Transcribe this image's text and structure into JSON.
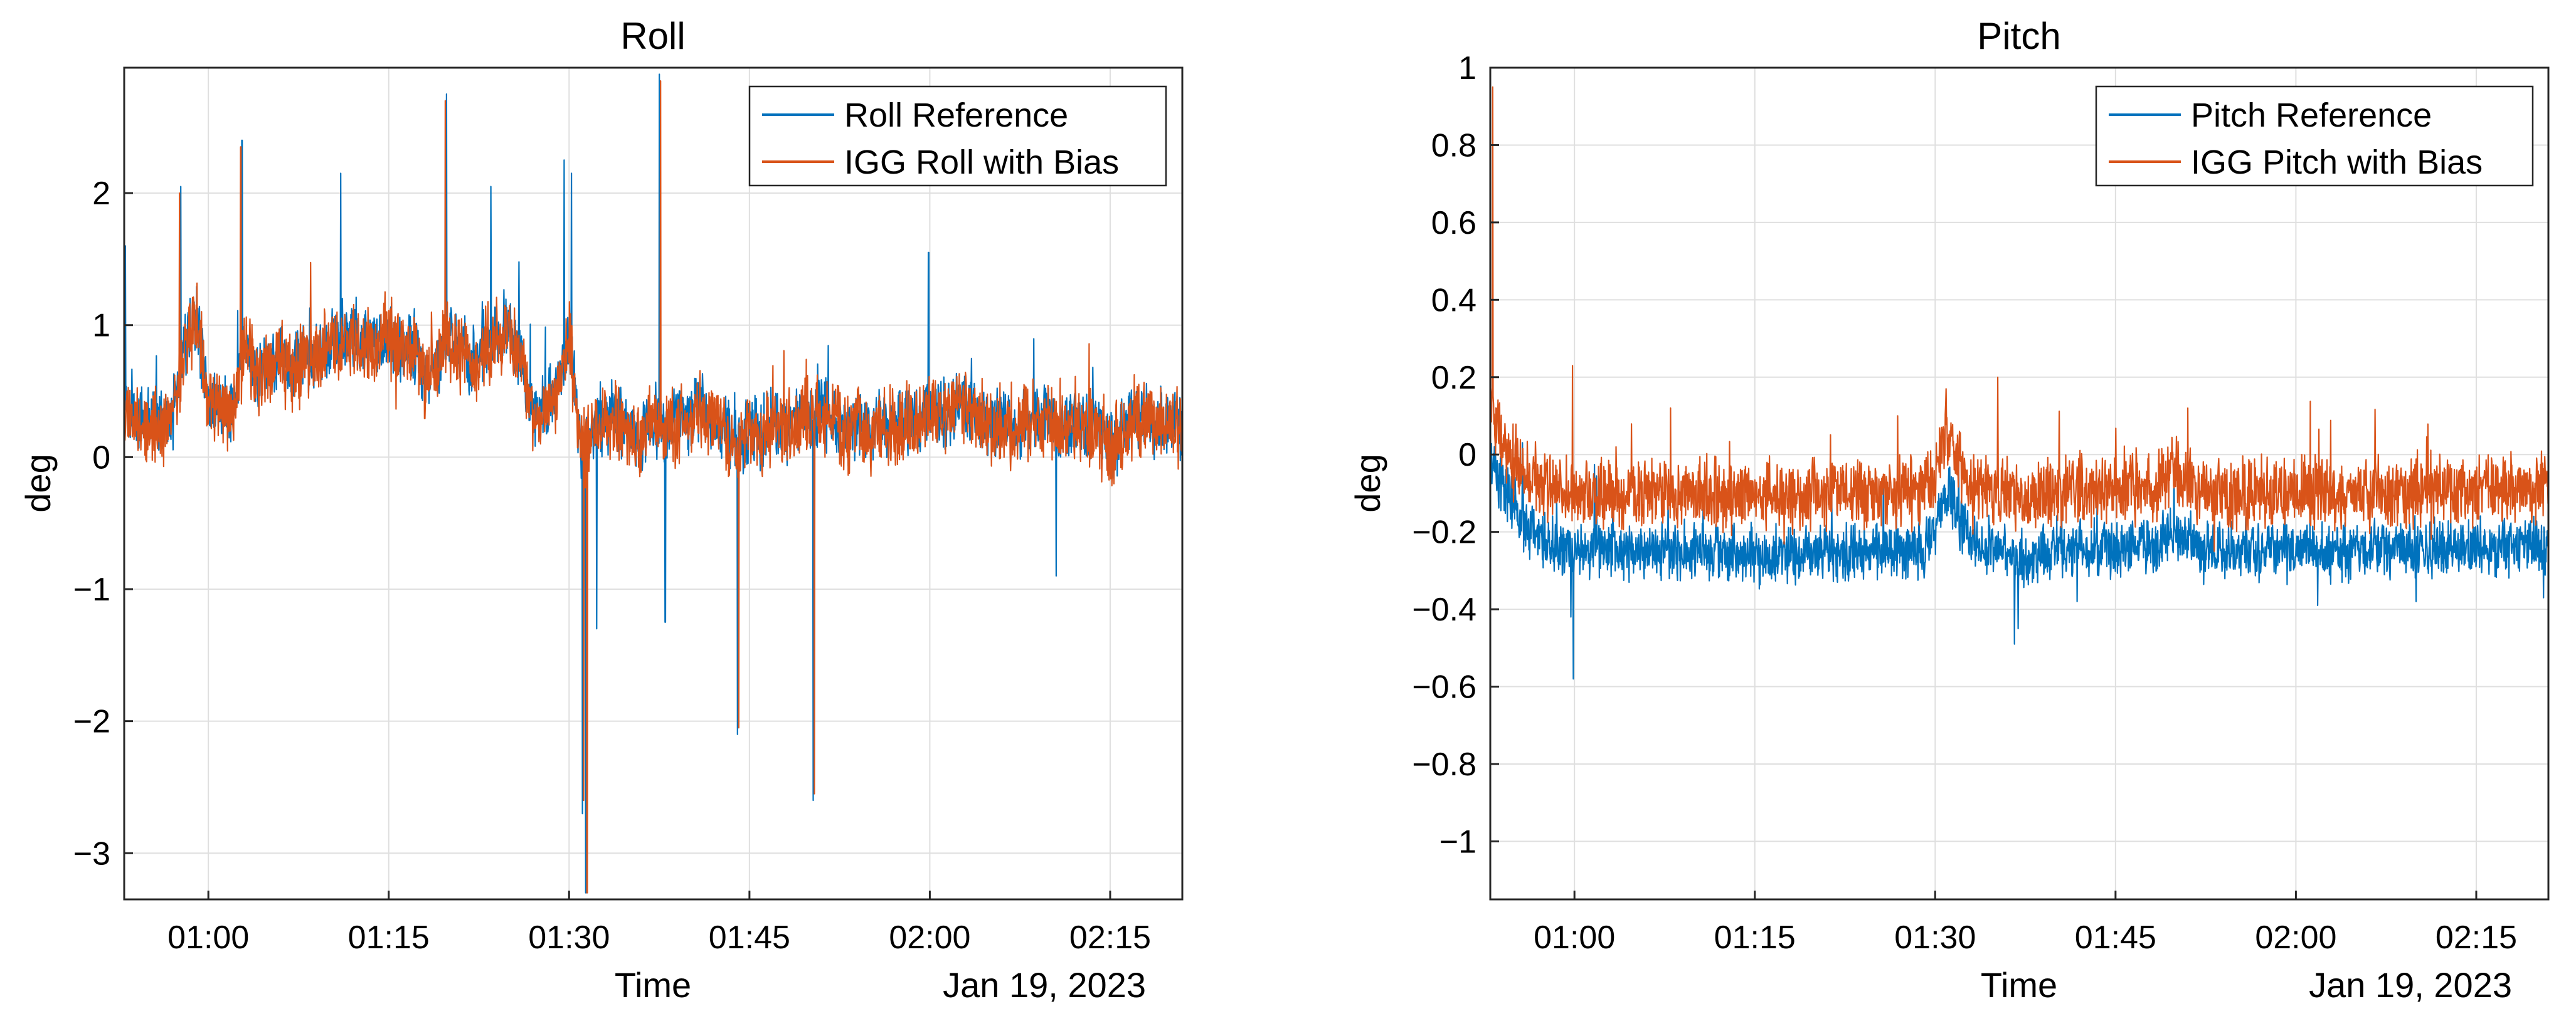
{
  "colors": {
    "reference": "#0072BD",
    "igg": "#D95319"
  },
  "chart_data": [
    {
      "type": "line",
      "title": "Roll",
      "xlabel": "Time",
      "ylabel": "deg",
      "date_label": "Jan 19, 2023",
      "xlim_minutes": [
        53,
        141
      ],
      "ylim": [
        -3.35,
        2.95
      ],
      "x_ticks": [
        {
          "minute": 60,
          "label": "01:00"
        },
        {
          "minute": 75,
          "label": "01:15"
        },
        {
          "minute": 90,
          "label": "01:30"
        },
        {
          "minute": 105,
          "label": "01:45"
        },
        {
          "minute": 120,
          "label": "02:00"
        },
        {
          "minute": 135,
          "label": "02:15"
        }
      ],
      "y_ticks": [
        {
          "value": -3,
          "label": "−3"
        },
        {
          "value": -2,
          "label": "−2"
        },
        {
          "value": -1,
          "label": "−1"
        },
        {
          "value": 0,
          "label": "0"
        },
        {
          "value": 1,
          "label": "1"
        },
        {
          "value": 2,
          "label": "2"
        }
      ],
      "legend": [
        "Roll Reference",
        "IGG Roll with Bias"
      ],
      "legend_position": "top-right",
      "grid": true,
      "series": [
        {
          "name": "Roll Reference",
          "color_key": "reference",
          "noise": 0.32,
          "seed": 7,
          "x": [
            53,
            54,
            56,
            57,
            58,
            59,
            60,
            61,
            62,
            63,
            64,
            65,
            66,
            67,
            68,
            69,
            70,
            71,
            72,
            73,
            74,
            75,
            76,
            77,
            78,
            79,
            80,
            81,
            82,
            83,
            84,
            85,
            86,
            87,
            88,
            89,
            90,
            91,
            92,
            93,
            94,
            95,
            96,
            97,
            98,
            99,
            100,
            101,
            102,
            103,
            104,
            105,
            106,
            107,
            108,
            109,
            110,
            111,
            112,
            113,
            114,
            115,
            116,
            117,
            118,
            119,
            120,
            121,
            122,
            123,
            124,
            125,
            126,
            127,
            128,
            129,
            130,
            131,
            132,
            133,
            134,
            135,
            136,
            137,
            138,
            139,
            140,
            141
          ],
          "y": [
            0.4,
            0.3,
            0.25,
            0.3,
            0.8,
            1.1,
            0.4,
            0.4,
            0.3,
            0.9,
            0.6,
            0.7,
            0.75,
            0.7,
            0.75,
            0.8,
            0.85,
            0.9,
            0.9,
            0.9,
            0.85,
            0.95,
            0.8,
            0.85,
            0.6,
            0.7,
            0.9,
            0.8,
            0.7,
            0.85,
            0.9,
            1.0,
            0.7,
            0.3,
            0.4,
            0.5,
            0.9,
            0.1,
            0.2,
            0.3,
            0.3,
            0.2,
            0.1,
            0.3,
            0.2,
            0.3,
            0.3,
            0.4,
            0.3,
            0.2,
            0.1,
            0.2,
            0.15,
            0.3,
            0.2,
            0.3,
            0.3,
            0.35,
            0.3,
            0.2,
            0.25,
            0.2,
            0.3,
            0.2,
            0.3,
            0.2,
            0.4,
            0.3,
            0.35,
            0.4,
            0.3,
            0.25,
            0.3,
            0.2,
            0.3,
            0.3,
            0.3,
            0.2,
            0.3,
            0.2,
            0.2,
            0.1,
            0.2,
            0.3,
            0.3,
            0.25,
            0.3,
            0.2
          ],
          "spikes": [
            {
              "x": 53.1,
              "y": 1.6
            },
            {
              "x": 57.7,
              "y": 2.05
            },
            {
              "x": 62.8,
              "y": 2.4
            },
            {
              "x": 71.0,
              "y": 2.15
            },
            {
              "x": 79.8,
              "y": 2.75
            },
            {
              "x": 83.5,
              "y": 2.05
            },
            {
              "x": 89.6,
              "y": 2.25
            },
            {
              "x": 90.2,
              "y": 2.15
            },
            {
              "x": 91.1,
              "y": -2.7
            },
            {
              "x": 91.4,
              "y": -3.3
            },
            {
              "x": 92.3,
              "y": -1.3
            },
            {
              "x": 97.5,
              "y": 2.9
            },
            {
              "x": 98.0,
              "y": -1.25
            },
            {
              "x": 104.0,
              "y": -2.1
            },
            {
              "x": 110.3,
              "y": -2.6
            },
            {
              "x": 119.9,
              "y": 1.55
            },
            {
              "x": 130.5,
              "y": -0.9
            }
          ]
        },
        {
          "name": "IGG Roll with Bias",
          "color_key": "igg",
          "noise": 0.36,
          "seed": 11,
          "x": [
            53,
            54,
            56,
            57,
            58,
            59,
            60,
            61,
            62,
            63,
            64,
            65,
            66,
            67,
            68,
            69,
            70,
            71,
            72,
            73,
            74,
            75,
            76,
            77,
            78,
            79,
            80,
            81,
            82,
            83,
            84,
            85,
            86,
            87,
            88,
            89,
            90,
            91,
            92,
            93,
            94,
            95,
            96,
            97,
            98,
            99,
            100,
            101,
            102,
            103,
            104,
            105,
            106,
            107,
            108,
            109,
            110,
            111,
            112,
            113,
            114,
            115,
            116,
            117,
            118,
            119,
            120,
            121,
            122,
            123,
            124,
            125,
            126,
            127,
            128,
            129,
            130,
            131,
            132,
            133,
            134,
            135,
            136,
            137,
            138,
            139,
            140,
            141
          ],
          "y": [
            0.38,
            0.28,
            0.22,
            0.28,
            0.78,
            1.08,
            0.38,
            0.38,
            0.28,
            0.88,
            0.58,
            0.68,
            0.73,
            0.68,
            0.73,
            0.78,
            0.83,
            0.88,
            0.88,
            0.88,
            0.83,
            0.93,
            0.78,
            0.83,
            0.58,
            0.68,
            0.88,
            0.78,
            0.68,
            0.83,
            0.88,
            0.98,
            0.68,
            0.28,
            0.38,
            0.48,
            0.88,
            0.08,
            0.18,
            0.28,
            0.28,
            0.18,
            0.08,
            0.28,
            0.18,
            0.28,
            0.28,
            0.38,
            0.28,
            0.18,
            0.08,
            0.18,
            0.13,
            0.28,
            0.18,
            0.28,
            0.28,
            0.33,
            0.28,
            0.18,
            0.23,
            0.18,
            0.28,
            0.18,
            0.28,
            0.18,
            0.38,
            0.28,
            0.33,
            0.38,
            0.28,
            0.23,
            0.28,
            0.18,
            0.28,
            0.28,
            0.28,
            0.18,
            0.28,
            0.18,
            0.18,
            0.08,
            0.18,
            0.28,
            0.28,
            0.23,
            0.28,
            0.18
          ],
          "spikes": [
            {
              "x": 57.6,
              "y": 2.0
            },
            {
              "x": 62.7,
              "y": 2.35
            },
            {
              "x": 79.7,
              "y": 2.7
            },
            {
              "x": 91.2,
              "y": -2.6
            },
            {
              "x": 91.5,
              "y": -3.3
            },
            {
              "x": 97.6,
              "y": 2.85
            },
            {
              "x": 104.1,
              "y": -2.05
            },
            {
              "x": 110.4,
              "y": -2.55
            }
          ]
        }
      ]
    },
    {
      "type": "line",
      "title": "Pitch",
      "xlabel": "Time",
      "ylabel": "deg",
      "date_label": "Jan 19, 2023",
      "xlim_minutes": [
        53,
        141
      ],
      "ylim": [
        -1.15,
        1.0
      ],
      "x_ticks": [
        {
          "minute": 60,
          "label": "01:00"
        },
        {
          "minute": 75,
          "label": "01:15"
        },
        {
          "minute": 90,
          "label": "01:30"
        },
        {
          "minute": 105,
          "label": "01:45"
        },
        {
          "minute": 120,
          "label": "02:00"
        },
        {
          "minute": 135,
          "label": "02:15"
        }
      ],
      "y_ticks": [
        {
          "value": -1,
          "label": "−1"
        },
        {
          "value": -0.8,
          "label": "−0.8"
        },
        {
          "value": -0.6,
          "label": "−0.6"
        },
        {
          "value": -0.4,
          "label": "−0.4"
        },
        {
          "value": -0.2,
          "label": "−0.2"
        },
        {
          "value": 0,
          "label": "0"
        },
        {
          "value": 0.2,
          "label": "0.2"
        },
        {
          "value": 0.4,
          "label": "0.4"
        },
        {
          "value": 0.6,
          "label": "0.6"
        },
        {
          "value": 0.8,
          "label": "0.8"
        },
        {
          "value": 1,
          "label": "1"
        }
      ],
      "legend": [
        "Pitch Reference",
        "IGG Pitch with Bias"
      ],
      "legend_position": "top-right",
      "grid": true,
      "series": [
        {
          "name": "Pitch Reference",
          "color_key": "reference",
          "noise": 0.09,
          "seed": 23,
          "x": [
            53,
            54,
            55,
            56,
            57,
            58,
            59,
            60,
            62,
            65,
            70,
            75,
            80,
            85,
            89,
            90,
            91,
            92,
            93,
            94,
            96,
            98,
            100,
            105,
            108,
            110,
            112,
            115,
            120,
            125,
            130,
            135,
            141
          ],
          "y": [
            0.0,
            -0.08,
            -0.14,
            -0.18,
            -0.21,
            -0.23,
            -0.24,
            -0.25,
            -0.25,
            -0.25,
            -0.25,
            -0.26,
            -0.25,
            -0.25,
            -0.24,
            -0.2,
            -0.08,
            -0.18,
            -0.22,
            -0.23,
            -0.25,
            -0.28,
            -0.24,
            -0.24,
            -0.23,
            -0.2,
            -0.24,
            -0.25,
            -0.24,
            -0.25,
            -0.24,
            -0.24,
            -0.23
          ],
          "spikes": [
            {
              "x": 59.9,
              "y": -0.58
            },
            {
              "x": 59.7,
              "y": -0.42
            },
            {
              "x": 96.6,
              "y": -0.49
            },
            {
              "x": 96.9,
              "y": -0.45
            },
            {
              "x": 101.8,
              "y": -0.38
            },
            {
              "x": 121.8,
              "y": -0.39
            },
            {
              "x": 130.0,
              "y": -0.38
            },
            {
              "x": 140.6,
              "y": -0.37
            }
          ]
        },
        {
          "name": "IGG Pitch with Bias",
          "color_key": "igg",
          "noise": 0.11,
          "seed": 31,
          "x": [
            53,
            54,
            55,
            56,
            57,
            58,
            59,
            60,
            62,
            65,
            70,
            75,
            80,
            85,
            89,
            90,
            91,
            92,
            93,
            94,
            96,
            98,
            100,
            105,
            108,
            110,
            112,
            115,
            120,
            125,
            130,
            135,
            141
          ],
          "y": [
            0.12,
            0.04,
            -0.02,
            -0.05,
            -0.07,
            -0.09,
            -0.1,
            -0.1,
            -0.1,
            -0.1,
            -0.1,
            -0.11,
            -0.1,
            -0.1,
            -0.09,
            -0.05,
            0.07,
            -0.03,
            -0.07,
            -0.08,
            -0.1,
            -0.12,
            -0.09,
            -0.09,
            -0.08,
            -0.05,
            -0.09,
            -0.1,
            -0.09,
            -0.1,
            -0.09,
            -0.09,
            -0.08
          ],
          "spikes": [
            {
              "x": 53.2,
              "y": 0.95
            },
            {
              "x": 59.85,
              "y": 0.23
            },
            {
              "x": 68.0,
              "y": 0.12
            },
            {
              "x": 90.9,
              "y": 0.17
            },
            {
              "x": 95.2,
              "y": 0.2
            },
            {
              "x": 111.0,
              "y": 0.12
            }
          ]
        }
      ]
    }
  ]
}
